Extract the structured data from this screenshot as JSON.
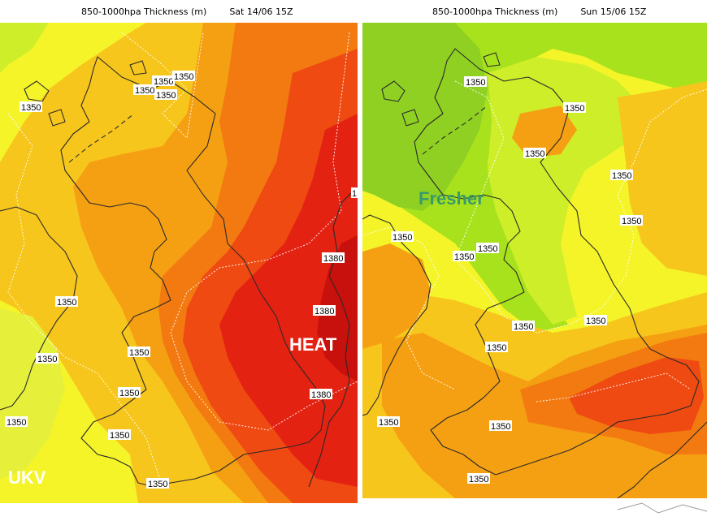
{
  "panels": [
    {
      "id": "left",
      "title": "850-1000hpa Thickness (m)",
      "valid_time": "Sat 14/06 15Z",
      "annotations": [
        "HEAT",
        "UKV"
      ],
      "contour_labels": [
        "1350",
        "1350",
        "1350",
        "1350",
        "1350",
        "1350",
        "1350",
        "1350",
        "1350",
        "1350",
        "1350",
        "1380",
        "1380",
        "1380",
        "1"
      ]
    },
    {
      "id": "right",
      "title": "850-1000hpa Thickness (m)",
      "valid_time": "Sun 15/06 15Z",
      "annotations": [
        "Fresher"
      ],
      "contour_labels": [
        "1350",
        "1350",
        "1350",
        "1350",
        "1350",
        "1350",
        "1350",
        "1350",
        "1350",
        "1350",
        "1350",
        "1350",
        "1350"
      ]
    }
  ],
  "colors": {
    "lime": "#a8e21c",
    "green_yellow": "#cfee2a",
    "yellow": "#f4f428",
    "light_orange": "#f7c61c",
    "orange": "#f5a012",
    "dark_orange": "#f27a10",
    "red_orange": "#ef4a12",
    "red": "#e42212",
    "dark_red": "#c8100c",
    "heat_text": "#ffffff",
    "fresher_text": "#3a9a6a",
    "ukv_text": "#ffffff"
  }
}
